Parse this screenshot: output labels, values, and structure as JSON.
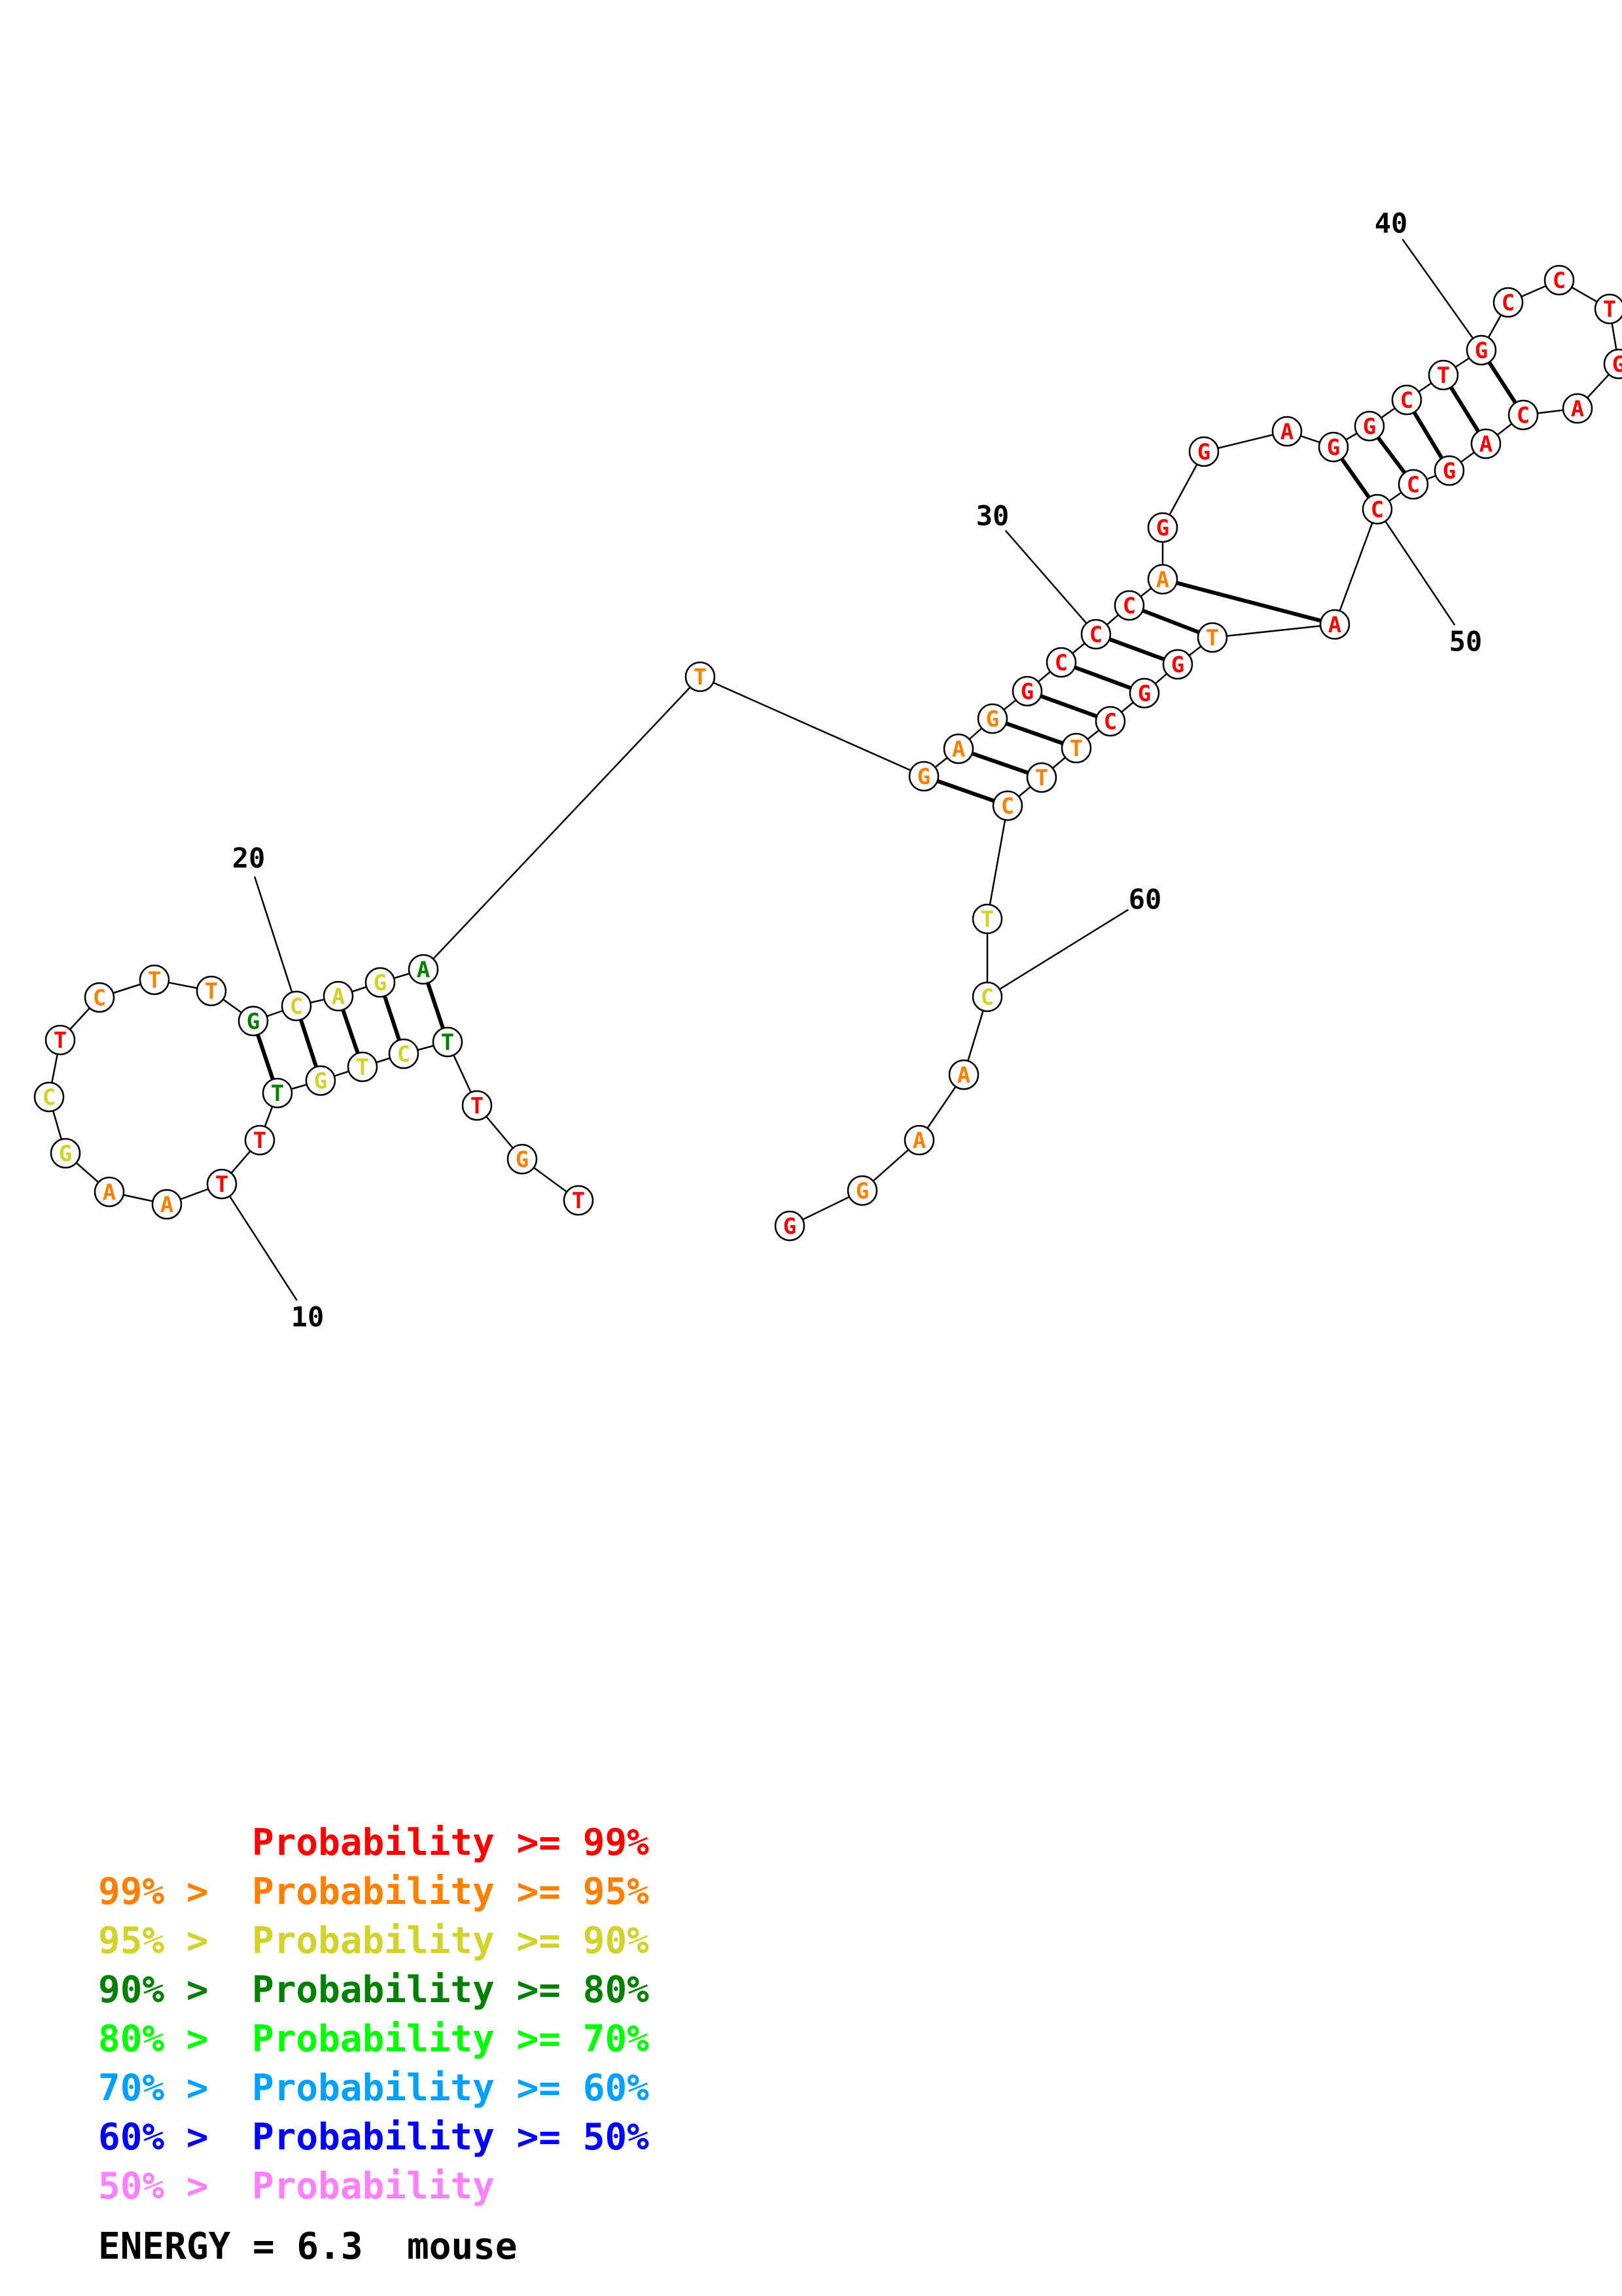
{
  "structure": {
    "palette": {
      "p99": "#ff0000",
      "p95": "#ff8000",
      "p90": "#d2d22a",
      "p80": "#008000",
      "p70": "#00ff00",
      "p60": "#00a0ff",
      "p50": "#0000ff",
      "low": "#ff80ff"
    },
    "nucleotides": [
      {
        "index": 1,
        "base": "T",
        "color": "p99"
      },
      {
        "index": 2,
        "base": "G",
        "color": "p95"
      },
      {
        "index": 3,
        "base": "T",
        "color": "p99"
      },
      {
        "index": 4,
        "base": "T",
        "color": "p80"
      },
      {
        "index": 5,
        "base": "C",
        "color": "p90"
      },
      {
        "index": 6,
        "base": "T",
        "color": "p90"
      },
      {
        "index": 7,
        "base": "G",
        "color": "p90"
      },
      {
        "index": 8,
        "base": "T",
        "color": "p80"
      },
      {
        "index": 9,
        "base": "T",
        "color": "p99"
      },
      {
        "index": 10,
        "base": "T",
        "color": "p99"
      },
      {
        "index": 11,
        "base": "A",
        "color": "p95"
      },
      {
        "index": 12,
        "base": "A",
        "color": "p95"
      },
      {
        "index": 13,
        "base": "G",
        "color": "p90"
      },
      {
        "index": 14,
        "base": "C",
        "color": "p90"
      },
      {
        "index": 15,
        "base": "T",
        "color": "p99"
      },
      {
        "index": 16,
        "base": "C",
        "color": "p95"
      },
      {
        "index": 17,
        "base": "T",
        "color": "p95"
      },
      {
        "index": 18,
        "base": "T",
        "color": "p95"
      },
      {
        "index": 19,
        "base": "G",
        "color": "p80"
      },
      {
        "index": 20,
        "base": "C",
        "color": "p90"
      },
      {
        "index": 21,
        "base": "A",
        "color": "p90"
      },
      {
        "index": 22,
        "base": "G",
        "color": "p90"
      },
      {
        "index": 23,
        "base": "A",
        "color": "p80"
      },
      {
        "index": 24,
        "base": "T",
        "color": "p95"
      },
      {
        "index": 25,
        "base": "G",
        "color": "p95"
      },
      {
        "index": 26,
        "base": "A",
        "color": "p95"
      },
      {
        "index": 27,
        "base": "G",
        "color": "p95"
      },
      {
        "index": 28,
        "base": "G",
        "color": "p99"
      },
      {
        "index": 29,
        "base": "C",
        "color": "p99"
      },
      {
        "index": 30,
        "base": "C",
        "color": "p99"
      },
      {
        "index": 31,
        "base": "C",
        "color": "p99"
      },
      {
        "index": 32,
        "base": "A",
        "color": "p95"
      },
      {
        "index": 33,
        "base": "G",
        "color": "p99"
      },
      {
        "index": 34,
        "base": "G",
        "color": "p99"
      },
      {
        "index": 35,
        "base": "A",
        "color": "p99"
      },
      {
        "index": 36,
        "base": "G",
        "color": "p99"
      },
      {
        "index": 37,
        "base": "G",
        "color": "p99"
      },
      {
        "index": 38,
        "base": "C",
        "color": "p99"
      },
      {
        "index": 39,
        "base": "T",
        "color": "p99"
      },
      {
        "index": 40,
        "base": "G",
        "color": "p99"
      },
      {
        "index": 41,
        "base": "C",
        "color": "p99"
      },
      {
        "index": 42,
        "base": "C",
        "color": "p99"
      },
      {
        "index": 43,
        "base": "T",
        "color": "p99"
      },
      {
        "index": 44,
        "base": "G",
        "color": "p99"
      },
      {
        "index": 45,
        "base": "A",
        "color": "p99"
      },
      {
        "index": 46,
        "base": "C",
        "color": "p99"
      },
      {
        "index": 47,
        "base": "A",
        "color": "p99"
      },
      {
        "index": 48,
        "base": "G",
        "color": "p99"
      },
      {
        "index": 49,
        "base": "C",
        "color": "p99"
      },
      {
        "index": 50,
        "base": "C",
        "color": "p99"
      },
      {
        "index": 51,
        "base": "A",
        "color": "p99"
      },
      {
        "index": 52,
        "base": "T",
        "color": "p95"
      },
      {
        "index": 53,
        "base": "G",
        "color": "p99"
      },
      {
        "index": 54,
        "base": "G",
        "color": "p99"
      },
      {
        "index": 55,
        "base": "C",
        "color": "p99"
      },
      {
        "index": 56,
        "base": "T",
        "color": "p95"
      },
      {
        "index": 57,
        "base": "T",
        "color": "p95"
      },
      {
        "index": 58,
        "base": "C",
        "color": "p95"
      },
      {
        "index": 59,
        "base": "T",
        "color": "p90"
      },
      {
        "index": 60,
        "base": "C",
        "color": "p90"
      },
      {
        "index": 61,
        "base": "A",
        "color": "p95"
      },
      {
        "index": 62,
        "base": "A",
        "color": "p95"
      },
      {
        "index": 63,
        "base": "G",
        "color": "p95"
      },
      {
        "index": 64,
        "base": "G",
        "color": "p99"
      }
    ],
    "pairs": [
      [
        4,
        23
      ],
      [
        5,
        22
      ],
      [
        6,
        21
      ],
      [
        7,
        20
      ],
      [
        8,
        19
      ],
      [
        25,
        58
      ],
      [
        26,
        57
      ],
      [
        27,
        56
      ],
      [
        28,
        55
      ],
      [
        29,
        54
      ],
      [
        30,
        53
      ],
      [
        31,
        52
      ],
      [
        32,
        51
      ],
      [
        36,
        50
      ],
      [
        37,
        49
      ],
      [
        38,
        48
      ],
      [
        39,
        47
      ],
      [
        40,
        46
      ]
    ],
    "position_labels": [
      {
        "index": 10,
        "text": "10"
      },
      {
        "index": 20,
        "text": "20"
      },
      {
        "index": 30,
        "text": "30"
      },
      {
        "index": 40,
        "text": "40"
      },
      {
        "index": 50,
        "text": "50"
      },
      {
        "index": 60,
        "text": "60"
      }
    ]
  },
  "legend": [
    {
      "prefix": "",
      "text": "Probability >= 99%",
      "color": "#ff0000"
    },
    {
      "prefix": "99% > ",
      "text": "Probability >= 95%",
      "color": "#ff8000"
    },
    {
      "prefix": "95% > ",
      "text": "Probability >= 90%",
      "color": "#d2d22a"
    },
    {
      "prefix": "90% > ",
      "text": "Probability >= 80%",
      "color": "#008000"
    },
    {
      "prefix": "80% > ",
      "text": "Probability >= 70%",
      "color": "#00ff00"
    },
    {
      "prefix": "70% > ",
      "text": "Probability >= 60%",
      "color": "#00a0ff"
    },
    {
      "prefix": "60% > ",
      "text": "Probability >= 50%",
      "color": "#0000ff"
    },
    {
      "prefix": "50% > ",
      "text": "Probability",
      "color": "#ff80ff"
    }
  ],
  "energy": {
    "label": "ENERGY = 6.3  mouse"
  }
}
